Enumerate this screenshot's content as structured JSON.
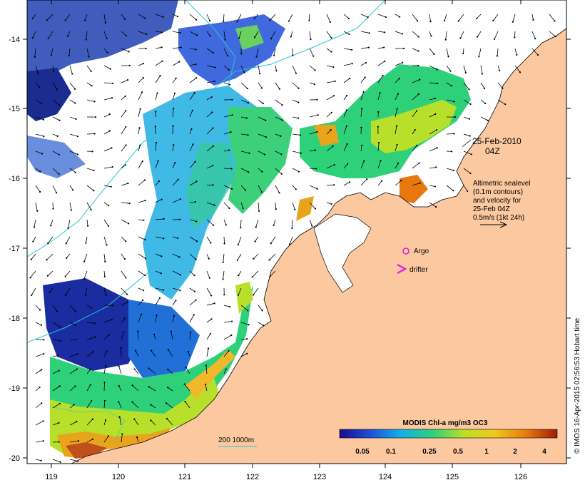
{
  "map": {
    "x_ticks": [
      "119",
      "120",
      "121",
      "122",
      "123",
      "124",
      "125",
      "126"
    ],
    "y_ticks": [
      "-14",
      "-15",
      "-16",
      "-17",
      "-18",
      "-19",
      "-20"
    ]
  },
  "annotations": {
    "date": "25-Feb-2010",
    "time": "04Z",
    "alt_line1": "Altimetric sealevel",
    "alt_line2": "(0.1m contours)",
    "alt_line3": "and velocity for",
    "alt_line4": "25-Feb 04Z",
    "alt_line5": "0.5m/s (1kt 24h)",
    "argo_label": "Argo",
    "drifter_label": "drifter",
    "depth_label": "200  1000m",
    "credit": "© IMOS 16-Apr-2015 02:56:53 Hobart time"
  },
  "colorbar": {
    "title": "MODIS Chl-a mg/m3 OC3",
    "ticks": [
      "0.05",
      "0.1",
      "0.25",
      "0.5",
      "1",
      "2",
      "4"
    ],
    "colors": [
      "#1a0c8c",
      "#1e4fd8",
      "#12b0e8",
      "#2fd07a",
      "#b8e02a",
      "#f0c81e",
      "#e8780e",
      "#a01a0a"
    ]
  },
  "colors": {
    "land": "#fbc8a0",
    "cloud": "#ffffff",
    "contour": "#25c7d8",
    "argo": "#e020e0",
    "frame": "#000000"
  }
}
